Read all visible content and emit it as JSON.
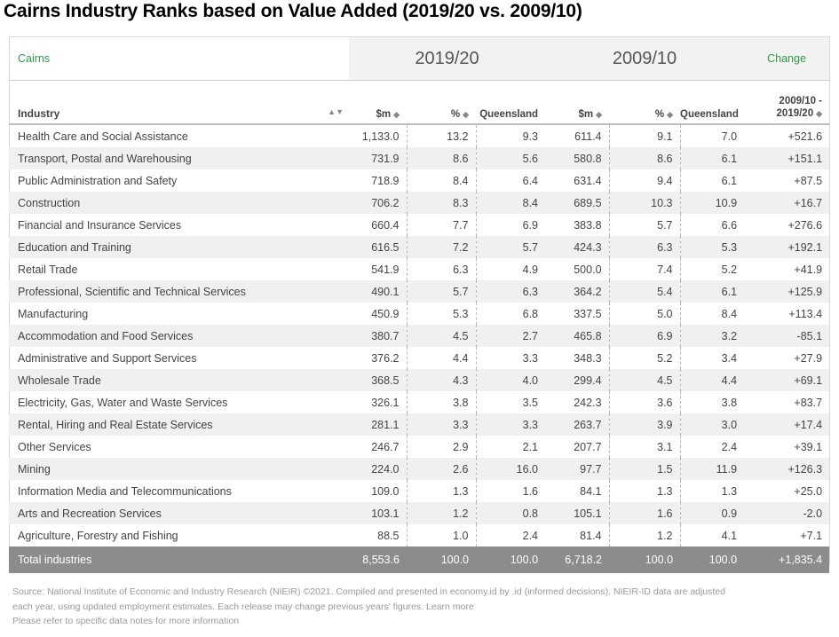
{
  "title": "Cairns Industry Ranks based on Value Added (2019/20 vs. 2009/10)",
  "region_label": "Cairns",
  "period_a": "2019/20",
  "period_b": "2009/10",
  "change_label": "Change",
  "headers": {
    "industry": "Industry",
    "sm_a": "$m",
    "pct_a": "%",
    "qld_a": "Queensland",
    "sm_b": "$m",
    "pct_b": "%",
    "qld_b": "Queensland",
    "change_line1": "2009/10 -",
    "change_line2": "2019/20"
  },
  "rows": [
    [
      "Health Care and Social Assistance",
      "1,133.0",
      "13.2",
      "9.3",
      "611.4",
      "9.1",
      "7.0",
      "+521.6"
    ],
    [
      "Transport, Postal and Warehousing",
      "731.9",
      "8.6",
      "5.6",
      "580.8",
      "8.6",
      "6.1",
      "+151.1"
    ],
    [
      "Public Administration and Safety",
      "718.9",
      "8.4",
      "6.4",
      "631.4",
      "9.4",
      "6.1",
      "+87.5"
    ],
    [
      "Construction",
      "706.2",
      "8.3",
      "8.4",
      "689.5",
      "10.3",
      "10.9",
      "+16.7"
    ],
    [
      "Financial and Insurance Services",
      "660.4",
      "7.7",
      "6.9",
      "383.8",
      "5.7",
      "6.6",
      "+276.6"
    ],
    [
      "Education and Training",
      "616.5",
      "7.2",
      "5.7",
      "424.3",
      "6.3",
      "5.3",
      "+192.1"
    ],
    [
      "Retail Trade",
      "541.9",
      "6.3",
      "4.9",
      "500.0",
      "7.4",
      "5.2",
      "+41.9"
    ],
    [
      "Professional, Scientific and Technical Services",
      "490.1",
      "5.7",
      "6.3",
      "364.2",
      "5.4",
      "6.1",
      "+125.9"
    ],
    [
      "Manufacturing",
      "450.9",
      "5.3",
      "6.8",
      "337.5",
      "5.0",
      "8.4",
      "+113.4"
    ],
    [
      "Accommodation and Food Services",
      "380.7",
      "4.5",
      "2.7",
      "465.8",
      "6.9",
      "3.2",
      "-85.1"
    ],
    [
      "Administrative and Support Services",
      "376.2",
      "4.4",
      "3.3",
      "348.3",
      "5.2",
      "3.4",
      "+27.9"
    ],
    [
      "Wholesale Trade",
      "368.5",
      "4.3",
      "4.0",
      "299.4",
      "4.5",
      "4.4",
      "+69.1"
    ],
    [
      "Electricity, Gas, Water and Waste Services",
      "326.1",
      "3.8",
      "3.5",
      "242.3",
      "3.6",
      "3.8",
      "+83.7"
    ],
    [
      "Rental, Hiring and Real Estate Services",
      "281.1",
      "3.3",
      "3.3",
      "263.7",
      "3.9",
      "3.0",
      "+17.4"
    ],
    [
      "Other Services",
      "246.7",
      "2.9",
      "2.1",
      "207.7",
      "3.1",
      "2.4",
      "+39.1"
    ],
    [
      "Mining",
      "224.0",
      "2.6",
      "16.0",
      "97.7",
      "1.5",
      "11.9",
      "+126.3"
    ],
    [
      "Information Media and Telecommunications",
      "109.0",
      "1.3",
      "1.6",
      "84.1",
      "1.3",
      "1.3",
      "+25.0"
    ],
    [
      "Arts and Recreation Services",
      "103.1",
      "1.2",
      "0.8",
      "105.1",
      "1.6",
      "0.9",
      "-2.0"
    ],
    [
      "Agriculture, Forestry and Fishing",
      "88.5",
      "1.0",
      "2.4",
      "81.4",
      "1.2",
      "4.1",
      "+7.1"
    ]
  ],
  "total": [
    "Total industries",
    "8,553.6",
    "100.0",
    "100.0",
    "6,718.2",
    "100.0",
    "100.0",
    "+1,835.4"
  ],
  "source_lines": [
    "Source: National Institute of Economic and Industry Research (NIEIR) ©2021. Compiled and presented in economy.id by .id (informed decisions). NIEIR-ID data are adjusted",
    "each year, using updated employment estimates. Each release may change previous years' figures. Learn more",
    "Please refer to specific data notes for more information"
  ],
  "colors": {
    "accent_green": "#2e9a48",
    "total_bg": "#8c8c8c",
    "band_bg": "#f2f2f2",
    "stripe_bg": "#f0f0f0"
  }
}
